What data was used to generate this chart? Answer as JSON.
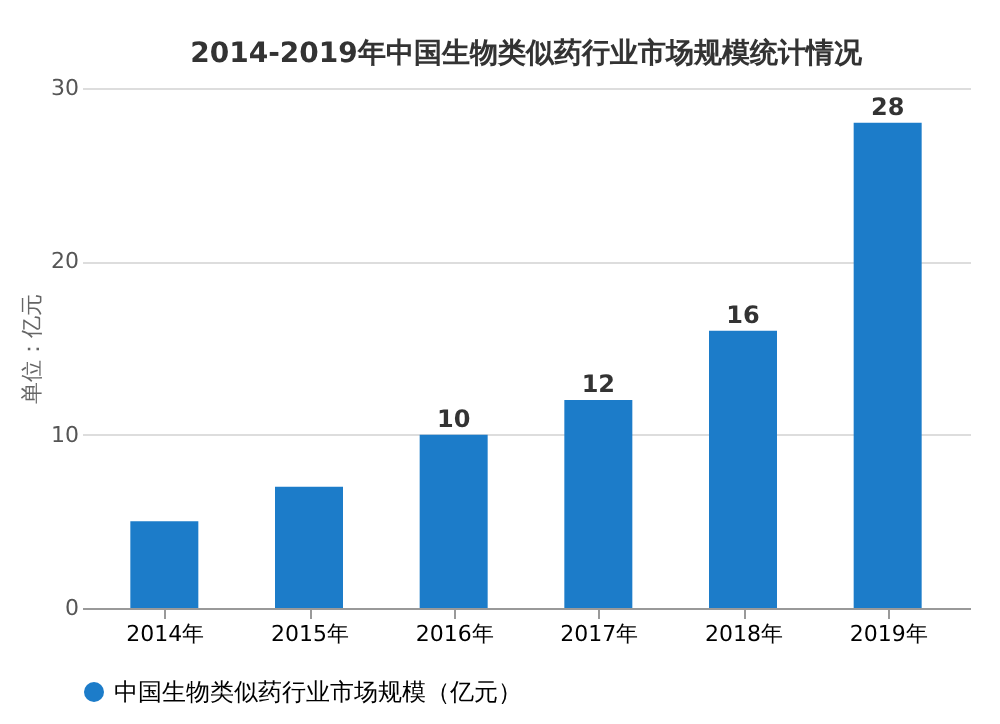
{
  "chart_data": {
    "type": "bar",
    "title": "2014-2019年中国生物类似药行业市场规模统计情况",
    "ylabel": "单位：亿元",
    "categories": [
      "2014年",
      "2015年",
      "2016年",
      "2017年",
      "2018年",
      "2019年"
    ],
    "series": [
      {
        "name": "中国生物类似药行业市场规模（亿元）",
        "color": "#1c7cc9",
        "values": [
          5,
          7,
          10,
          12,
          16,
          28
        ],
        "value_labels": [
          null,
          null,
          "10",
          "12",
          "16",
          "28"
        ]
      }
    ],
    "ylim": [
      0,
      30
    ],
    "yticks": [
      0,
      10,
      20,
      30
    ],
    "grid": "y",
    "legend": "bottom"
  }
}
